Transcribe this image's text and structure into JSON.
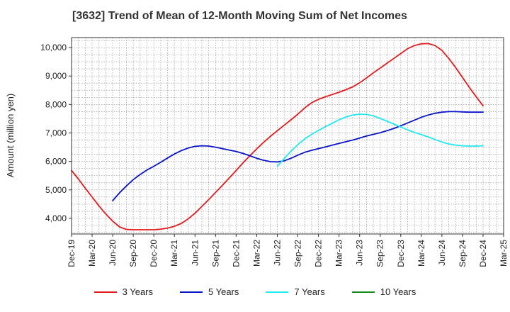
{
  "chart_data": {
    "type": "line",
    "title": "[3632]  Trend of Mean of 12-Month Moving Sum of Net Incomes",
    "xlabel": "",
    "ylabel": "Amount (million yen)",
    "ylim": [
      3450,
      10350
    ],
    "yticks": [
      4000,
      5000,
      6000,
      7000,
      8000,
      9000,
      10000
    ],
    "ytick_labels": [
      "4,000",
      "5,000",
      "6,000",
      "7,000",
      "8,000",
      "9,000",
      "10,000"
    ],
    "x_start": "Dec-19",
    "x_end": "Mar-25",
    "xtick_labels": [
      "Dec-19",
      "Mar-20",
      "Jun-20",
      "Sep-20",
      "Dec-20",
      "Mar-21",
      "Jun-21",
      "Sep-21",
      "Dec-21",
      "Mar-22",
      "Jun-22",
      "Sep-22",
      "Dec-22",
      "Mar-23",
      "Jun-23",
      "Sep-23",
      "Dec-23",
      "Mar-24",
      "Jun-24",
      "Sep-24",
      "Dec-24",
      "Mar-25"
    ],
    "grid": true,
    "legend_position": "bottom",
    "series": [
      {
        "name": "3 Years",
        "color": "#e41a1c",
        "x": [
          "Dec-19",
          "Jan-20",
          "Feb-20",
          "Mar-20",
          "Apr-20",
          "May-20",
          "Jun-20",
          "Jul-20",
          "Aug-20",
          "Sep-20",
          "Oct-20",
          "Nov-20",
          "Dec-20",
          "Jan-21",
          "Feb-21",
          "Mar-21",
          "Apr-21",
          "May-21",
          "Jun-21",
          "Jul-21",
          "Aug-21",
          "Sep-21",
          "Oct-21",
          "Nov-21",
          "Dec-21",
          "Jan-22",
          "Feb-22",
          "Mar-22",
          "Apr-22",
          "May-22",
          "Jun-22",
          "Jul-22",
          "Aug-22",
          "Sep-22",
          "Oct-22",
          "Nov-22",
          "Dec-22",
          "Jan-23",
          "Feb-23",
          "Mar-23",
          "Apr-23",
          "May-23",
          "Jun-23",
          "Jul-23",
          "Aug-23",
          "Sep-23",
          "Oct-23",
          "Nov-23",
          "Dec-23",
          "Jan-24",
          "Feb-24",
          "Mar-24",
          "Apr-24",
          "May-24",
          "Jun-24",
          "Jul-24",
          "Aug-24",
          "Sep-24",
          "Oct-24",
          "Nov-24",
          "Dec-24"
        ],
        "values": [
          5680,
          5380,
          5060,
          4750,
          4440,
          4150,
          3900,
          3700,
          3610,
          3600,
          3600,
          3600,
          3600,
          3620,
          3660,
          3720,
          3820,
          3980,
          4180,
          4420,
          4660,
          4910,
          5160,
          5420,
          5680,
          5950,
          6200,
          6440,
          6670,
          6880,
          7080,
          7270,
          7460,
          7660,
          7880,
          8060,
          8180,
          8270,
          8350,
          8430,
          8520,
          8620,
          8760,
          8930,
          9110,
          9280,
          9450,
          9620,
          9790,
          9960,
          10070,
          10130,
          10140,
          10070,
          9900,
          9620,
          9300,
          8950,
          8600,
          8270,
          7950
        ]
      },
      {
        "name": "5 Years",
        "color": "#0a14c8",
        "x": [
          "Jun-20",
          "Jul-20",
          "Aug-20",
          "Sep-20",
          "Oct-20",
          "Nov-20",
          "Dec-20",
          "Jan-21",
          "Feb-21",
          "Mar-21",
          "Apr-21",
          "May-21",
          "Jun-21",
          "Jul-21",
          "Aug-21",
          "Sep-21",
          "Oct-21",
          "Nov-21",
          "Dec-21",
          "Jan-22",
          "Feb-22",
          "Mar-22",
          "Apr-22",
          "May-22",
          "Jun-22",
          "Jul-22",
          "Aug-22",
          "Sep-22",
          "Oct-22",
          "Nov-22",
          "Dec-22",
          "Jan-23",
          "Feb-23",
          "Mar-23",
          "Apr-23",
          "May-23",
          "Jun-23",
          "Jul-23",
          "Aug-23",
          "Sep-23",
          "Oct-23",
          "Nov-23",
          "Dec-23",
          "Jan-24",
          "Feb-24",
          "Mar-24",
          "Apr-24",
          "May-24",
          "Jun-24",
          "Jul-24",
          "Aug-24",
          "Sep-24",
          "Oct-24",
          "Nov-24",
          "Dec-24"
        ],
        "values": [
          4620,
          4900,
          5140,
          5360,
          5540,
          5700,
          5830,
          5970,
          6120,
          6260,
          6380,
          6470,
          6530,
          6550,
          6540,
          6500,
          6450,
          6400,
          6350,
          6280,
          6200,
          6110,
          6040,
          5990,
          5980,
          6020,
          6110,
          6220,
          6320,
          6390,
          6450,
          6510,
          6570,
          6630,
          6690,
          6750,
          6820,
          6890,
          6950,
          7010,
          7080,
          7160,
          7250,
          7350,
          7450,
          7550,
          7630,
          7690,
          7730,
          7750,
          7750,
          7740,
          7730,
          7730,
          7730
        ]
      },
      {
        "name": "7 Years",
        "color": "#22e8f0",
        "x": [
          "Jun-22",
          "Jul-22",
          "Aug-22",
          "Sep-22",
          "Oct-22",
          "Nov-22",
          "Dec-22",
          "Jan-23",
          "Feb-23",
          "Mar-23",
          "Apr-23",
          "May-23",
          "Jun-23",
          "Jul-23",
          "Aug-23",
          "Sep-23",
          "Oct-23",
          "Nov-23",
          "Dec-23",
          "Jan-24",
          "Feb-24",
          "Mar-24",
          "Apr-24",
          "May-24",
          "Jun-24",
          "Jul-24",
          "Aug-24",
          "Sep-24",
          "Oct-24",
          "Nov-24",
          "Dec-24"
        ],
        "values": [
          5830,
          6100,
          6360,
          6590,
          6790,
          6950,
          7090,
          7220,
          7340,
          7460,
          7560,
          7630,
          7660,
          7650,
          7600,
          7510,
          7410,
          7310,
          7210,
          7110,
          7020,
          6940,
          6860,
          6770,
          6680,
          6610,
          6570,
          6550,
          6540,
          6540,
          6550
        ]
      },
      {
        "name": "10 Years",
        "color": "#1a8a1a",
        "x": [],
        "values": []
      }
    ]
  }
}
